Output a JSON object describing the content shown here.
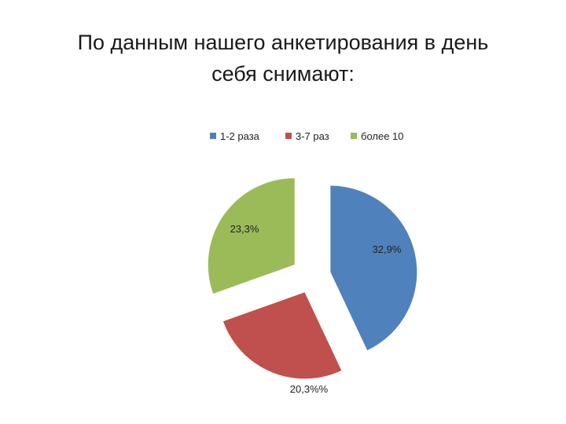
{
  "slide": {
    "title_line1": "По данным нашего анкетирования  в день",
    "title_line2": "себя снимают:"
  },
  "chart_data": {
    "type": "pie",
    "exploded": true,
    "legend_position": "top",
    "categories": [
      "1-2 раза",
      "3-7 раз",
      "более 10"
    ],
    "values": [
      32.9,
      20.3,
      23.3
    ],
    "data_labels": [
      "32,9%",
      "20,3%%",
      "23,3%"
    ],
    "colors": [
      "#4f81bd",
      "#c0504d",
      "#9bbb59"
    ]
  }
}
